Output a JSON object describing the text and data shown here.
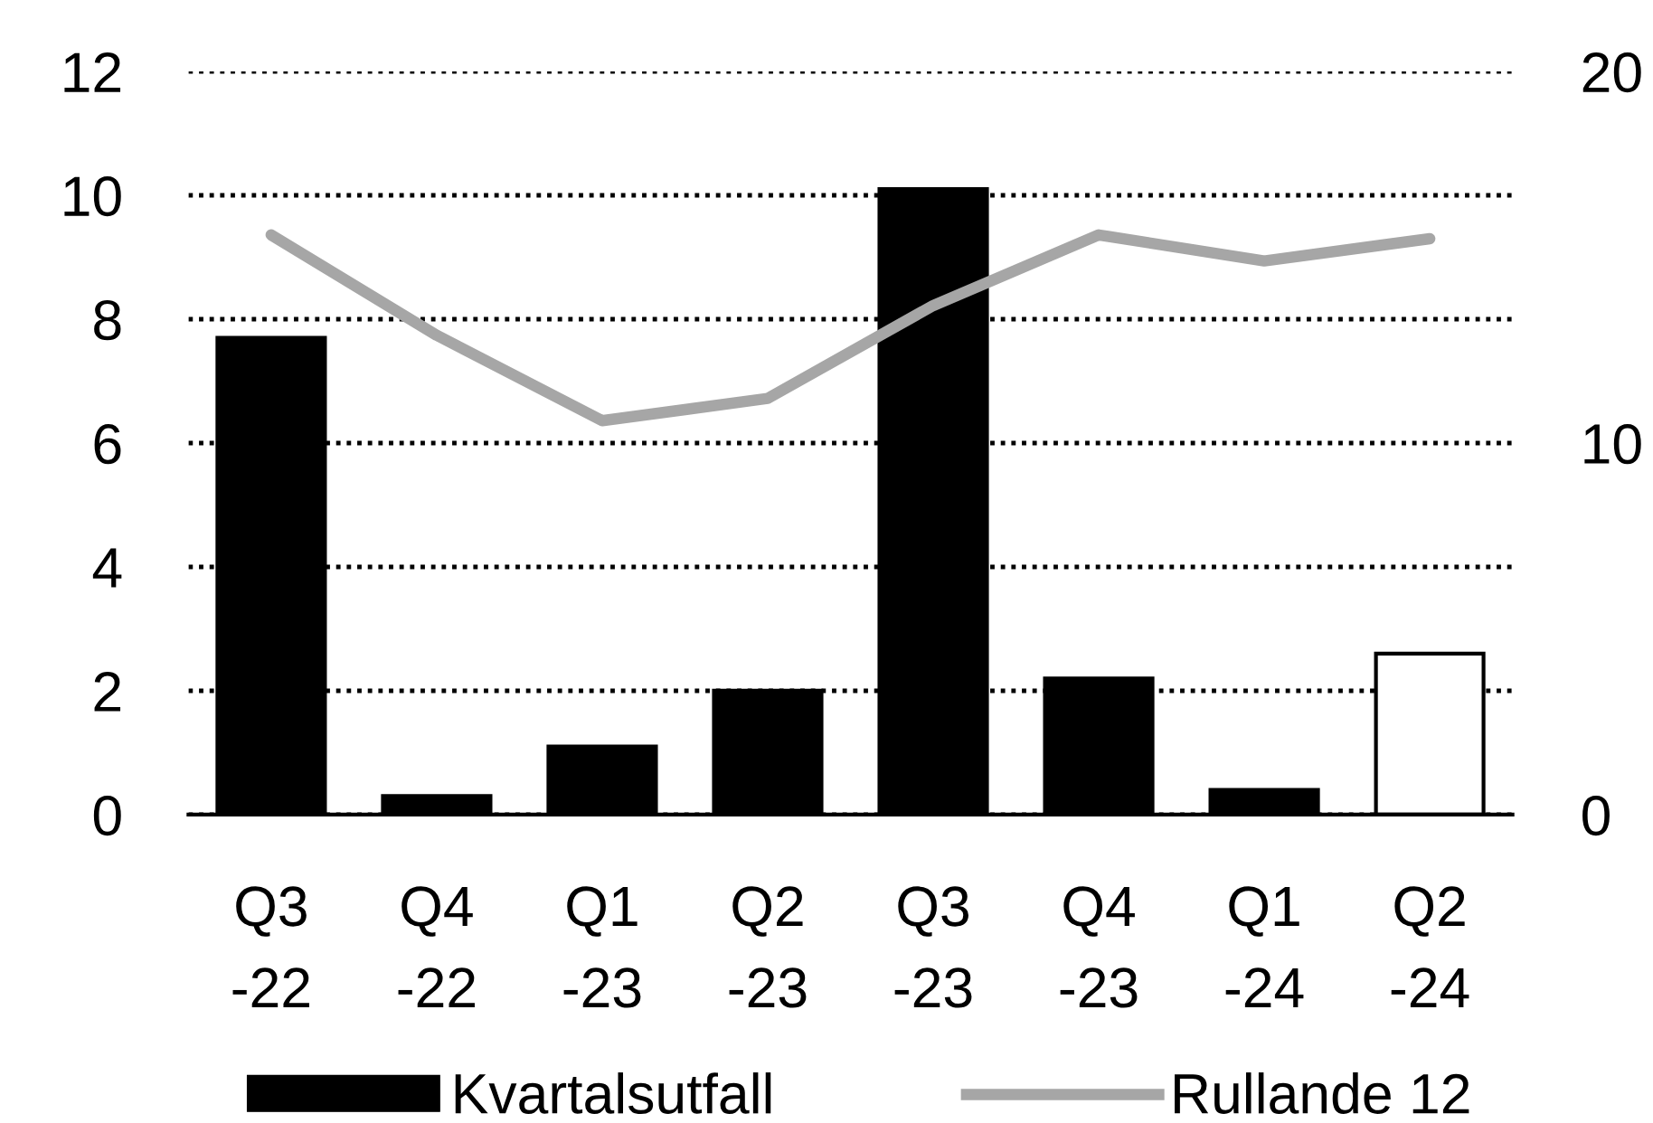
{
  "chart_data": {
    "type": "bar",
    "categories": [
      "Q3 -22",
      "Q4 -22",
      "Q1 -23",
      "Q2 -23",
      "Q3 -23",
      "Q4 -23",
      "Q1 -24",
      "Q2 -24"
    ],
    "series": [
      {
        "name": "Kvartalsutfall",
        "color": "#000000",
        "colors": [
          "#000000",
          "#000000",
          "#000000",
          "#000000",
          "#000000",
          "#000000",
          "#000000",
          "#ffffff"
        ],
        "values": [
          7.7,
          0.3,
          1.1,
          2.0,
          10.1,
          2.2,
          0.4,
          2.6
        ]
      },
      {
        "name": "Rullande 12",
        "type": "line",
        "axis": "y2",
        "color": "#a6a6a6",
        "values": [
          15.6,
          12.9,
          10.6,
          11.2,
          13.7,
          15.6,
          14.9,
          15.5
        ]
      }
    ],
    "ylim": [
      0,
      12
    ],
    "yticks": [
      0,
      2,
      4,
      6,
      8,
      10,
      12
    ],
    "y2lim": [
      0,
      20
    ],
    "y2ticks": [
      0,
      10,
      20
    ],
    "grid": "y",
    "legend": "bottom",
    "line_style": "solid"
  }
}
